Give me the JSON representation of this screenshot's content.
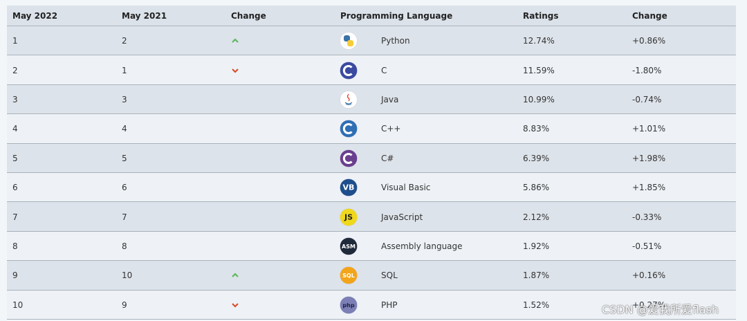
{
  "table": {
    "header": [
      "May 2022",
      "May 2021",
      "Change",
      "Programming Language",
      "Ratings",
      "Change"
    ],
    "rows": [
      {
        "rank_2022": "1",
        "rank_2021": "2",
        "trend": "up",
        "icon": {
          "kind": "python",
          "bg": "#ffffff"
        },
        "language": "Python",
        "rating": "12.74%",
        "change": "+0.86%"
      },
      {
        "rank_2022": "2",
        "rank_2021": "1",
        "trend": "down",
        "icon": {
          "kind": "c",
          "bg": "#3a4aa0"
        },
        "language": "C",
        "rating": "11.59%",
        "change": "-1.80%"
      },
      {
        "rank_2022": "3",
        "rank_2021": "3",
        "trend": null,
        "icon": {
          "kind": "java",
          "bg": "#ffffff"
        },
        "language": "Java",
        "rating": "10.99%",
        "change": "-0.74%"
      },
      {
        "rank_2022": "4",
        "rank_2021": "4",
        "trend": null,
        "icon": {
          "kind": "c",
          "bg": "#2f6fb5"
        },
        "language": "C++",
        "rating": "8.83%",
        "change": "+1.01%"
      },
      {
        "rank_2022": "5",
        "rank_2021": "5",
        "trend": null,
        "icon": {
          "kind": "c",
          "bg": "#6a3f8f"
        },
        "language": "C#",
        "rating": "6.39%",
        "change": "+1.98%"
      },
      {
        "rank_2022": "6",
        "rank_2021": "6",
        "trend": null,
        "icon": {
          "kind": "badge",
          "bg": "#1e4f8c",
          "fg": "#ffffff",
          "text": "VB"
        },
        "language": "Visual Basic",
        "rating": "5.86%",
        "change": "+1.85%"
      },
      {
        "rank_2022": "7",
        "rank_2021": "7",
        "trend": null,
        "icon": {
          "kind": "badge",
          "bg": "#f0d81a",
          "fg": "#222222",
          "text": "JS"
        },
        "language": "JavaScript",
        "rating": "2.12%",
        "change": "-0.33%"
      },
      {
        "rank_2022": "8",
        "rank_2021": "8",
        "trend": null,
        "icon": {
          "kind": "badge",
          "bg": "#1f2a3a",
          "fg": "#ffffff",
          "text": "ASM"
        },
        "language": "Assembly language",
        "rating": "1.92%",
        "change": "-0.51%"
      },
      {
        "rank_2022": "9",
        "rank_2021": "10",
        "trend": "up",
        "icon": {
          "kind": "badge",
          "bg": "#f2a51a",
          "fg": "#ffffff",
          "text": "SQL"
        },
        "language": "SQL",
        "rating": "1.87%",
        "change": "+0.16%"
      },
      {
        "rank_2022": "10",
        "rank_2021": "9",
        "trend": "down",
        "icon": {
          "kind": "badge",
          "bg": "#7b7fb5",
          "fg": "#1f2240",
          "text": "php"
        },
        "language": "PHP",
        "rating": "1.52%",
        "change": "+0.27%"
      }
    ]
  },
  "watermark": "CSDN @爱我所爱flash"
}
